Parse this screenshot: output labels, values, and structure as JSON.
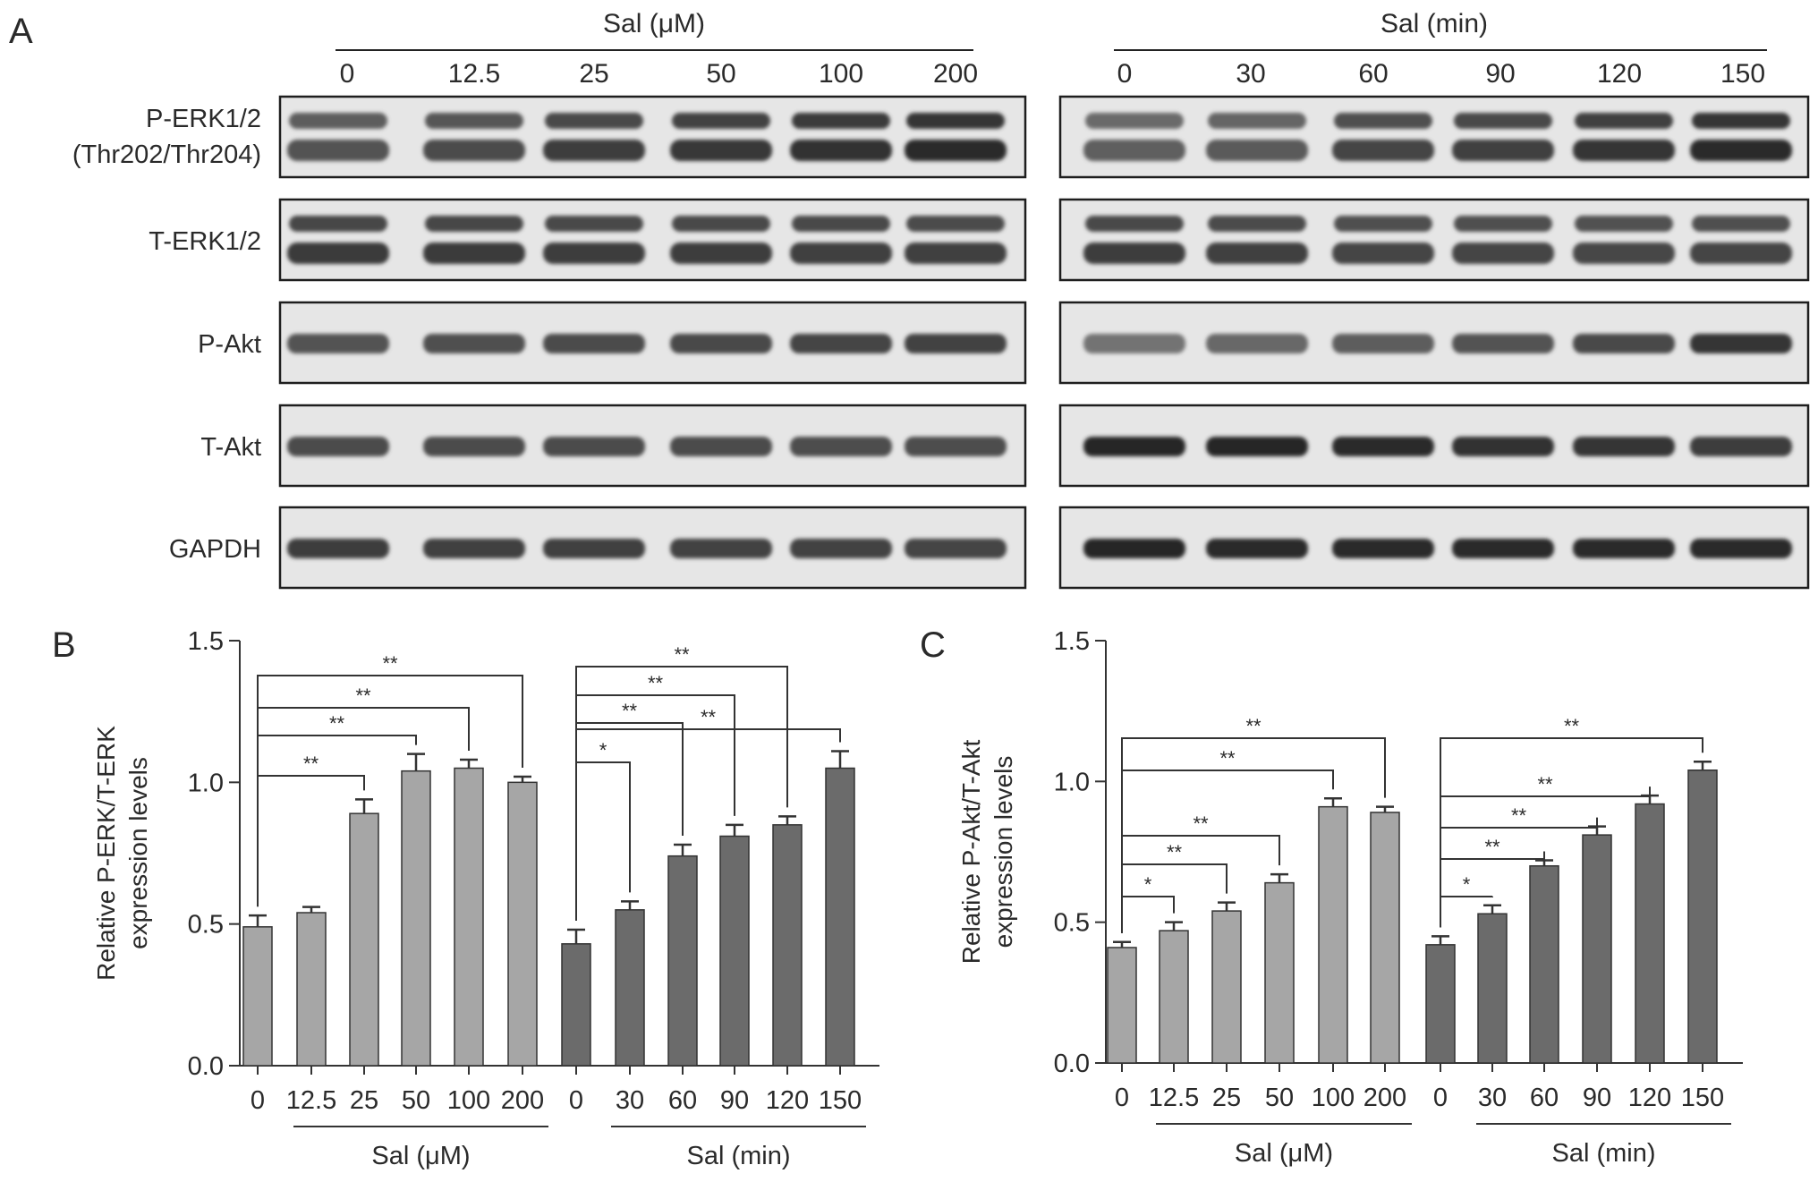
{
  "panel_letters": {
    "a": "A",
    "b": "B",
    "c": "C"
  },
  "blot": {
    "dose_header": "Sal (μM)",
    "time_header": "Sal (min)",
    "dose_lanes": [
      "0",
      "12.5",
      "25",
      "50",
      "100",
      "200"
    ],
    "time_lanes": [
      "0",
      "30",
      "60",
      "90",
      "120",
      "150"
    ],
    "rows": [
      {
        "label": [
          "P-ERK1/2",
          "(Thr202/Thr204)"
        ],
        "bands": 2,
        "dose_intensity": [
          0.62,
          0.66,
          0.74,
          0.77,
          0.81,
          0.84
        ],
        "time_intensity": [
          0.55,
          0.58,
          0.7,
          0.73,
          0.78,
          0.84
        ]
      },
      {
        "label": [
          "T-ERK1/2"
        ],
        "bands": 2,
        "dose_intensity": [
          0.75,
          0.75,
          0.74,
          0.74,
          0.73,
          0.72
        ],
        "time_intensity": [
          0.74,
          0.72,
          0.7,
          0.7,
          0.69,
          0.7
        ]
      },
      {
        "label": [
          "P-Akt"
        ],
        "bands": 1,
        "dose_intensity": [
          0.68,
          0.7,
          0.72,
          0.74,
          0.76,
          0.77
        ],
        "time_intensity": [
          0.5,
          0.56,
          0.62,
          0.68,
          0.74,
          0.85
        ]
      },
      {
        "label": [
          "T-Akt"
        ],
        "bands": 1,
        "dose_intensity": [
          0.72,
          0.72,
          0.72,
          0.72,
          0.71,
          0.71
        ],
        "time_intensity": [
          0.92,
          0.92,
          0.9,
          0.86,
          0.84,
          0.8
        ]
      },
      {
        "label": [
          "GAPDH"
        ],
        "bands": 1,
        "dose_intensity": [
          0.8,
          0.78,
          0.78,
          0.77,
          0.77,
          0.76
        ],
        "time_intensity": [
          0.92,
          0.9,
          0.9,
          0.9,
          0.9,
          0.9
        ]
      }
    ]
  },
  "chart_data": [
    {
      "type": "bar",
      "panel": "B",
      "ylabel": [
        "Relative P-ERK/T-ERK",
        "expression levels"
      ],
      "ylim": [
        0,
        1.5
      ],
      "yticks": [
        "0.0",
        "0.5",
        "1.0",
        "1.5"
      ],
      "groups": [
        {
          "label": "Sal (μM)",
          "categories": [
            "0",
            "12.5",
            "25",
            "50",
            "100",
            "200"
          ],
          "values": [
            0.49,
            0.54,
            0.89,
            1.04,
            1.05,
            1.0
          ],
          "errors": [
            0.04,
            0.02,
            0.05,
            0.06,
            0.03,
            0.02
          ],
          "color": "#a6a6a6"
        },
        {
          "label": "Sal (min)",
          "categories": [
            "0",
            "30",
            "60",
            "90",
            "120",
            "150"
          ],
          "values": [
            0.43,
            0.55,
            0.74,
            0.81,
            0.85,
            1.05
          ],
          "errors": [
            0.05,
            0.03,
            0.04,
            0.04,
            0.03,
            0.06
          ],
          "color": "#6b6b6b"
        }
      ],
      "brackets": [
        {
          "group": 0,
          "to": 2,
          "label": "**"
        },
        {
          "group": 0,
          "to": 3,
          "label": "**"
        },
        {
          "group": 0,
          "to": 4,
          "label": "**"
        },
        {
          "group": 0,
          "to": 5,
          "label": "**"
        },
        {
          "group": 1,
          "to": 1,
          "label": "*"
        },
        {
          "group": 1,
          "to": 2,
          "label": "**"
        },
        {
          "group": 1,
          "to": 3,
          "label": "**"
        },
        {
          "group": 1,
          "to": 4,
          "label": "**"
        },
        {
          "group": 1,
          "to": 5,
          "label": "**"
        }
      ]
    },
    {
      "type": "bar",
      "panel": "C",
      "ylabel": [
        "Relative P-Akt/T-Akt",
        "expression levels"
      ],
      "ylim": [
        0,
        1.5
      ],
      "yticks": [
        "0.0",
        "0.5",
        "1.0",
        "1.5"
      ],
      "groups": [
        {
          "label": "Sal (μM)",
          "categories": [
            "0",
            "12.5",
            "25",
            "50",
            "100",
            "200"
          ],
          "values": [
            0.41,
            0.47,
            0.54,
            0.64,
            0.91,
            0.89
          ],
          "errors": [
            0.02,
            0.03,
            0.03,
            0.03,
            0.03,
            0.02
          ],
          "color": "#a6a6a6"
        },
        {
          "label": "Sal (min)",
          "categories": [
            "0",
            "30",
            "60",
            "90",
            "120",
            "150"
          ],
          "values": [
            0.42,
            0.53,
            0.7,
            0.81,
            0.92,
            1.04
          ],
          "errors": [
            0.03,
            0.03,
            0.02,
            0.03,
            0.03,
            0.03
          ],
          "color": "#6b6b6b"
        }
      ],
      "brackets": [
        {
          "group": 0,
          "to": 1,
          "label": "*"
        },
        {
          "group": 0,
          "to": 2,
          "label": "**"
        },
        {
          "group": 0,
          "to": 3,
          "label": "**"
        },
        {
          "group": 0,
          "to": 4,
          "label": "**"
        },
        {
          "group": 0,
          "to": 5,
          "label": "**"
        },
        {
          "group": 1,
          "to": 1,
          "label": "*"
        },
        {
          "group": 1,
          "to": 2,
          "label": "**"
        },
        {
          "group": 1,
          "to": 3,
          "label": "**"
        },
        {
          "group": 1,
          "to": 4,
          "label": "**"
        },
        {
          "group": 1,
          "to": 5,
          "label": "**"
        }
      ]
    }
  ]
}
